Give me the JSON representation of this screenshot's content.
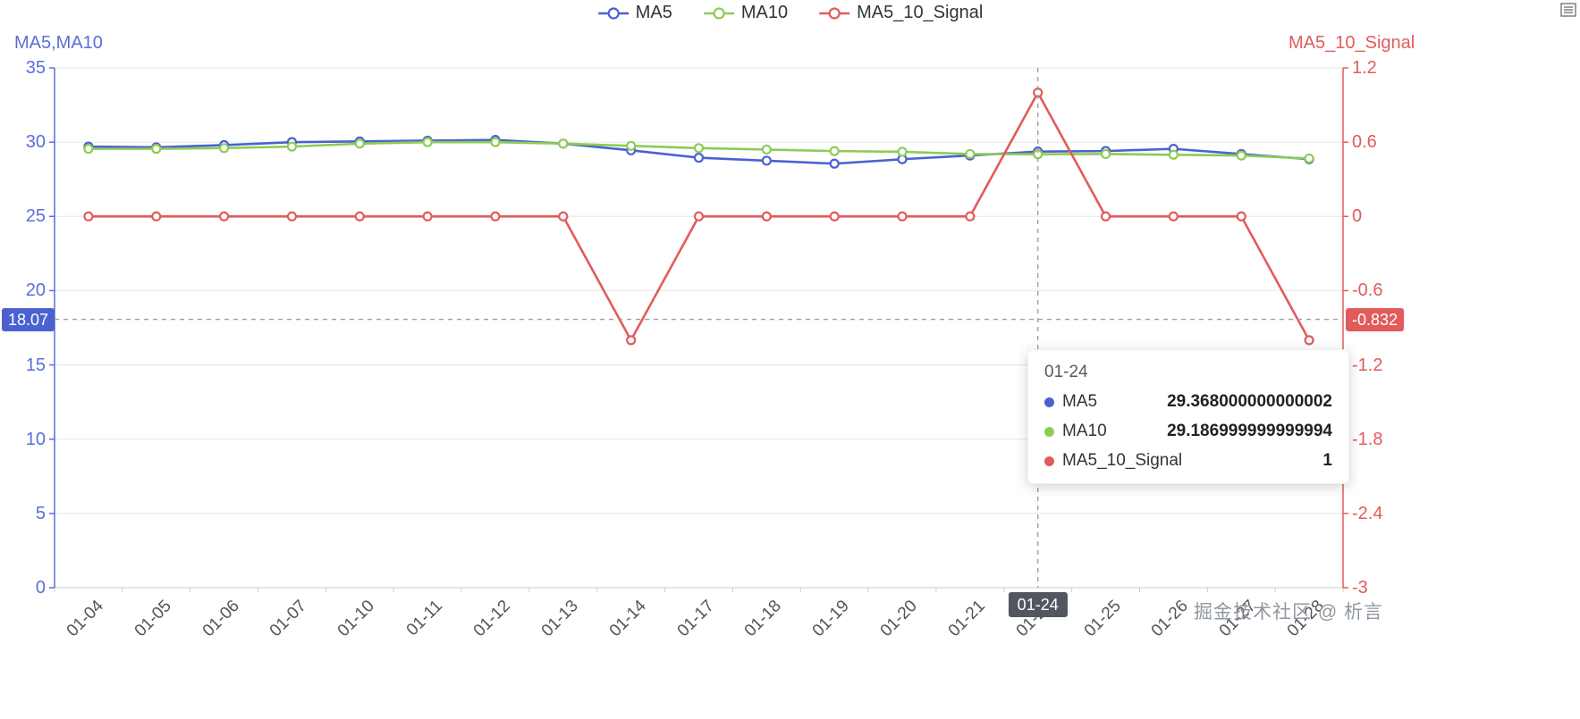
{
  "colors": {
    "grid": "#e6e6e6",
    "axis_left": "#5b6fd8",
    "axis_right": "#e25b5b",
    "crosshair": "#a0a0a0",
    "x_tick_text": "#555555",
    "badge_x_bg": "#51565f",
    "watermark": "#9097a1",
    "legend_text": "#333333"
  },
  "chart_data": {
    "type": "line",
    "x": [
      "01-04",
      "01-05",
      "01-06",
      "01-07",
      "01-10",
      "01-11",
      "01-12",
      "01-13",
      "01-14",
      "01-17",
      "01-18",
      "01-19",
      "01-20",
      "01-21",
      "01-24",
      "01-25",
      "01-26",
      "01-27",
      "01-28"
    ],
    "series": [
      {
        "name": "MA5",
        "axis": "left",
        "color": "#4b61d1",
        "values": [
          29.7,
          29.65,
          29.8,
          30.0,
          30.05,
          30.1,
          30.15,
          29.9,
          29.45,
          28.95,
          28.75,
          28.55,
          28.85,
          29.1,
          29.368000000000002,
          29.4,
          29.55,
          29.2,
          28.85
        ]
      },
      {
        "name": "MA10",
        "axis": "left",
        "color": "#8dcc54",
        "values": [
          29.55,
          29.55,
          29.6,
          29.7,
          29.9,
          30.0,
          30.0,
          29.9,
          29.75,
          29.6,
          29.5,
          29.4,
          29.35,
          29.2,
          29.186999999999994,
          29.2,
          29.15,
          29.1,
          28.9
        ]
      },
      {
        "name": "MA5_10_Signal",
        "axis": "right",
        "color": "#e25b5b",
        "values": [
          0,
          0,
          0,
          0,
          0,
          0,
          0,
          0,
          -1,
          0,
          0,
          0,
          0,
          0,
          1,
          0,
          0,
          0,
          -1
        ]
      }
    ],
    "left_axis": {
      "name": "MA5,MA10",
      "min": 0,
      "max": 35,
      "ticks": [
        "0",
        "5",
        "10",
        "15",
        "20",
        "25",
        "30",
        "35"
      ]
    },
    "right_axis": {
      "name": "MA5_10_Signal",
      "min": -3,
      "max": 1.2,
      "ticks": [
        "-3",
        "-2.4",
        "-1.8",
        "-1.2",
        "-0.6",
        "0",
        "0.6",
        "1.2"
      ]
    },
    "legend_position": "top",
    "grid": true
  },
  "crosshair": {
    "x_index": 14,
    "x_label": "01-24",
    "y_left_value": 18.07,
    "left_label": "18.07",
    "right_label": "-0.832"
  },
  "tooltip": {
    "header": "01-24",
    "rows": [
      {
        "label": "MA5",
        "value": "29.368000000000002"
      },
      {
        "label": "MA10",
        "value": "29.186999999999994"
      },
      {
        "label": "MA5_10_Signal",
        "value": "1"
      }
    ]
  },
  "watermark": {
    "text": "掘金技术社区 @ 析言"
  },
  "toolbox": {
    "icon": "data-view-icon"
  }
}
